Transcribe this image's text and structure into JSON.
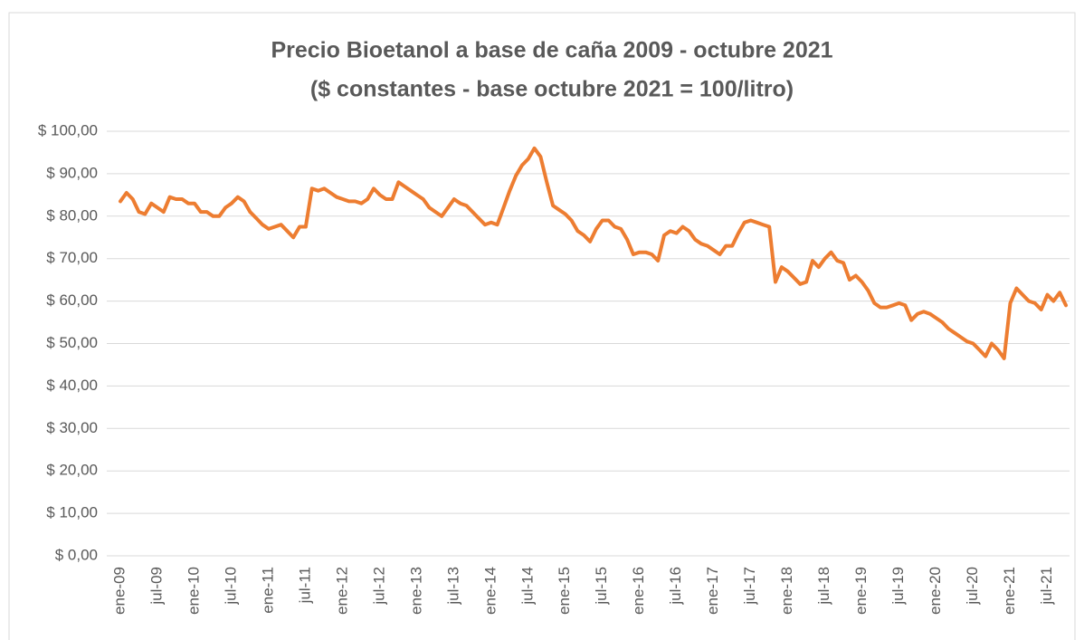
{
  "chart_data": {
    "type": "line",
    "title": "Precio Bioetanol a base de caña 2009 - octubre 2021",
    "subtitle": "($ constantes - base octubre 2021 = 100/litro)",
    "categories": [
      "ene-09",
      null,
      null,
      null,
      null,
      null,
      "jul-09",
      null,
      null,
      null,
      null,
      null,
      "ene-10",
      null,
      null,
      null,
      null,
      null,
      "jul-10",
      null,
      null,
      null,
      null,
      null,
      "ene-11",
      null,
      null,
      null,
      null,
      null,
      "jul-11",
      null,
      null,
      null,
      null,
      null,
      "ene-12",
      null,
      null,
      null,
      null,
      null,
      "jul-12",
      null,
      null,
      null,
      null,
      null,
      "ene-13",
      null,
      null,
      null,
      null,
      null,
      "jul-13",
      null,
      null,
      null,
      null,
      null,
      "ene-14",
      null,
      null,
      null,
      null,
      null,
      "jul-14",
      null,
      null,
      null,
      null,
      null,
      "ene-15",
      null,
      null,
      null,
      null,
      null,
      "jul-15",
      null,
      null,
      null,
      null,
      null,
      "ene-16",
      null,
      null,
      null,
      null,
      null,
      "jul-16",
      null,
      null,
      null,
      null,
      null,
      "ene-17",
      null,
      null,
      null,
      null,
      null,
      "jul-17",
      null,
      null,
      null,
      null,
      null,
      "ene-18",
      null,
      null,
      null,
      null,
      null,
      "jul-18",
      null,
      null,
      null,
      null,
      null,
      "ene-19",
      null,
      null,
      null,
      null,
      null,
      "jul-19",
      null,
      null,
      null,
      null,
      null,
      "ene-20",
      null,
      null,
      null,
      null,
      null,
      "jul-20",
      null,
      null,
      null,
      null,
      null,
      "ene-21",
      null,
      null,
      null,
      null,
      null,
      "jul-21",
      null,
      null,
      null
    ],
    "series": [
      {
        "color": "#ed7d31",
        "values": [
          83.5,
          85.5,
          84,
          81,
          80.5,
          83,
          82,
          81,
          84.5,
          84,
          84,
          83,
          83,
          81,
          81,
          80,
          80,
          82,
          83,
          84.5,
          83.5,
          81,
          79.5,
          78,
          77,
          77.5,
          78,
          76.5,
          75,
          77.5,
          77.5,
          86.5,
          86,
          86.5,
          85.5,
          84.5,
          84,
          83.5,
          83.5,
          83,
          84,
          86.5,
          85,
          84,
          84,
          88,
          87,
          86,
          85,
          84,
          82,
          81,
          80,
          82,
          84,
          83,
          82.5,
          81,
          79.5,
          78,
          78.5,
          78,
          82,
          86,
          89.5,
          92,
          93.5,
          96,
          94,
          88,
          82.5,
          81.5,
          80.5,
          79,
          76.5,
          75.5,
          74,
          77,
          79,
          79,
          77.5,
          77,
          74.5,
          71,
          71.5,
          71.5,
          71,
          69.5,
          75.5,
          76.5,
          76,
          77.5,
          76.5,
          74.5,
          73.5,
          73,
          72,
          71,
          73,
          73,
          76,
          78.5,
          79,
          78.5,
          78,
          77.5,
          64.5,
          68,
          67,
          65.5,
          64,
          64.5,
          69.5,
          68,
          70,
          71.5,
          69.5,
          69,
          65,
          66,
          64.5,
          62.5,
          59.5,
          58.5,
          58.5,
          59,
          59.5,
          59,
          55.5,
          57,
          57.5,
          57,
          56,
          55,
          53.5,
          52.5,
          51.5,
          50.5,
          50,
          48.5,
          47,
          50,
          48.5,
          46.5,
          59.5,
          63,
          61.5,
          60,
          59.5,
          58,
          61.5,
          60,
          62,
          59
        ]
      }
    ],
    "ylim": [
      0,
      100
    ],
    "yticks": [
      {
        "value": 0,
        "label": "$ 0,00"
      },
      {
        "value": 10,
        "label": "$ 10,00"
      },
      {
        "value": 20,
        "label": "$ 20,00"
      },
      {
        "value": 30,
        "label": "$ 30,00"
      },
      {
        "value": 40,
        "label": "$ 40,00"
      },
      {
        "value": 50,
        "label": "$ 50,00"
      },
      {
        "value": 60,
        "label": "$ 60,00"
      },
      {
        "value": 70,
        "label": "$ 70,00"
      },
      {
        "value": 80,
        "label": "$ 80,00"
      },
      {
        "value": 90,
        "label": "$ 90,00"
      },
      {
        "value": 100,
        "label": "$ 100,00"
      }
    ],
    "grid": true
  }
}
